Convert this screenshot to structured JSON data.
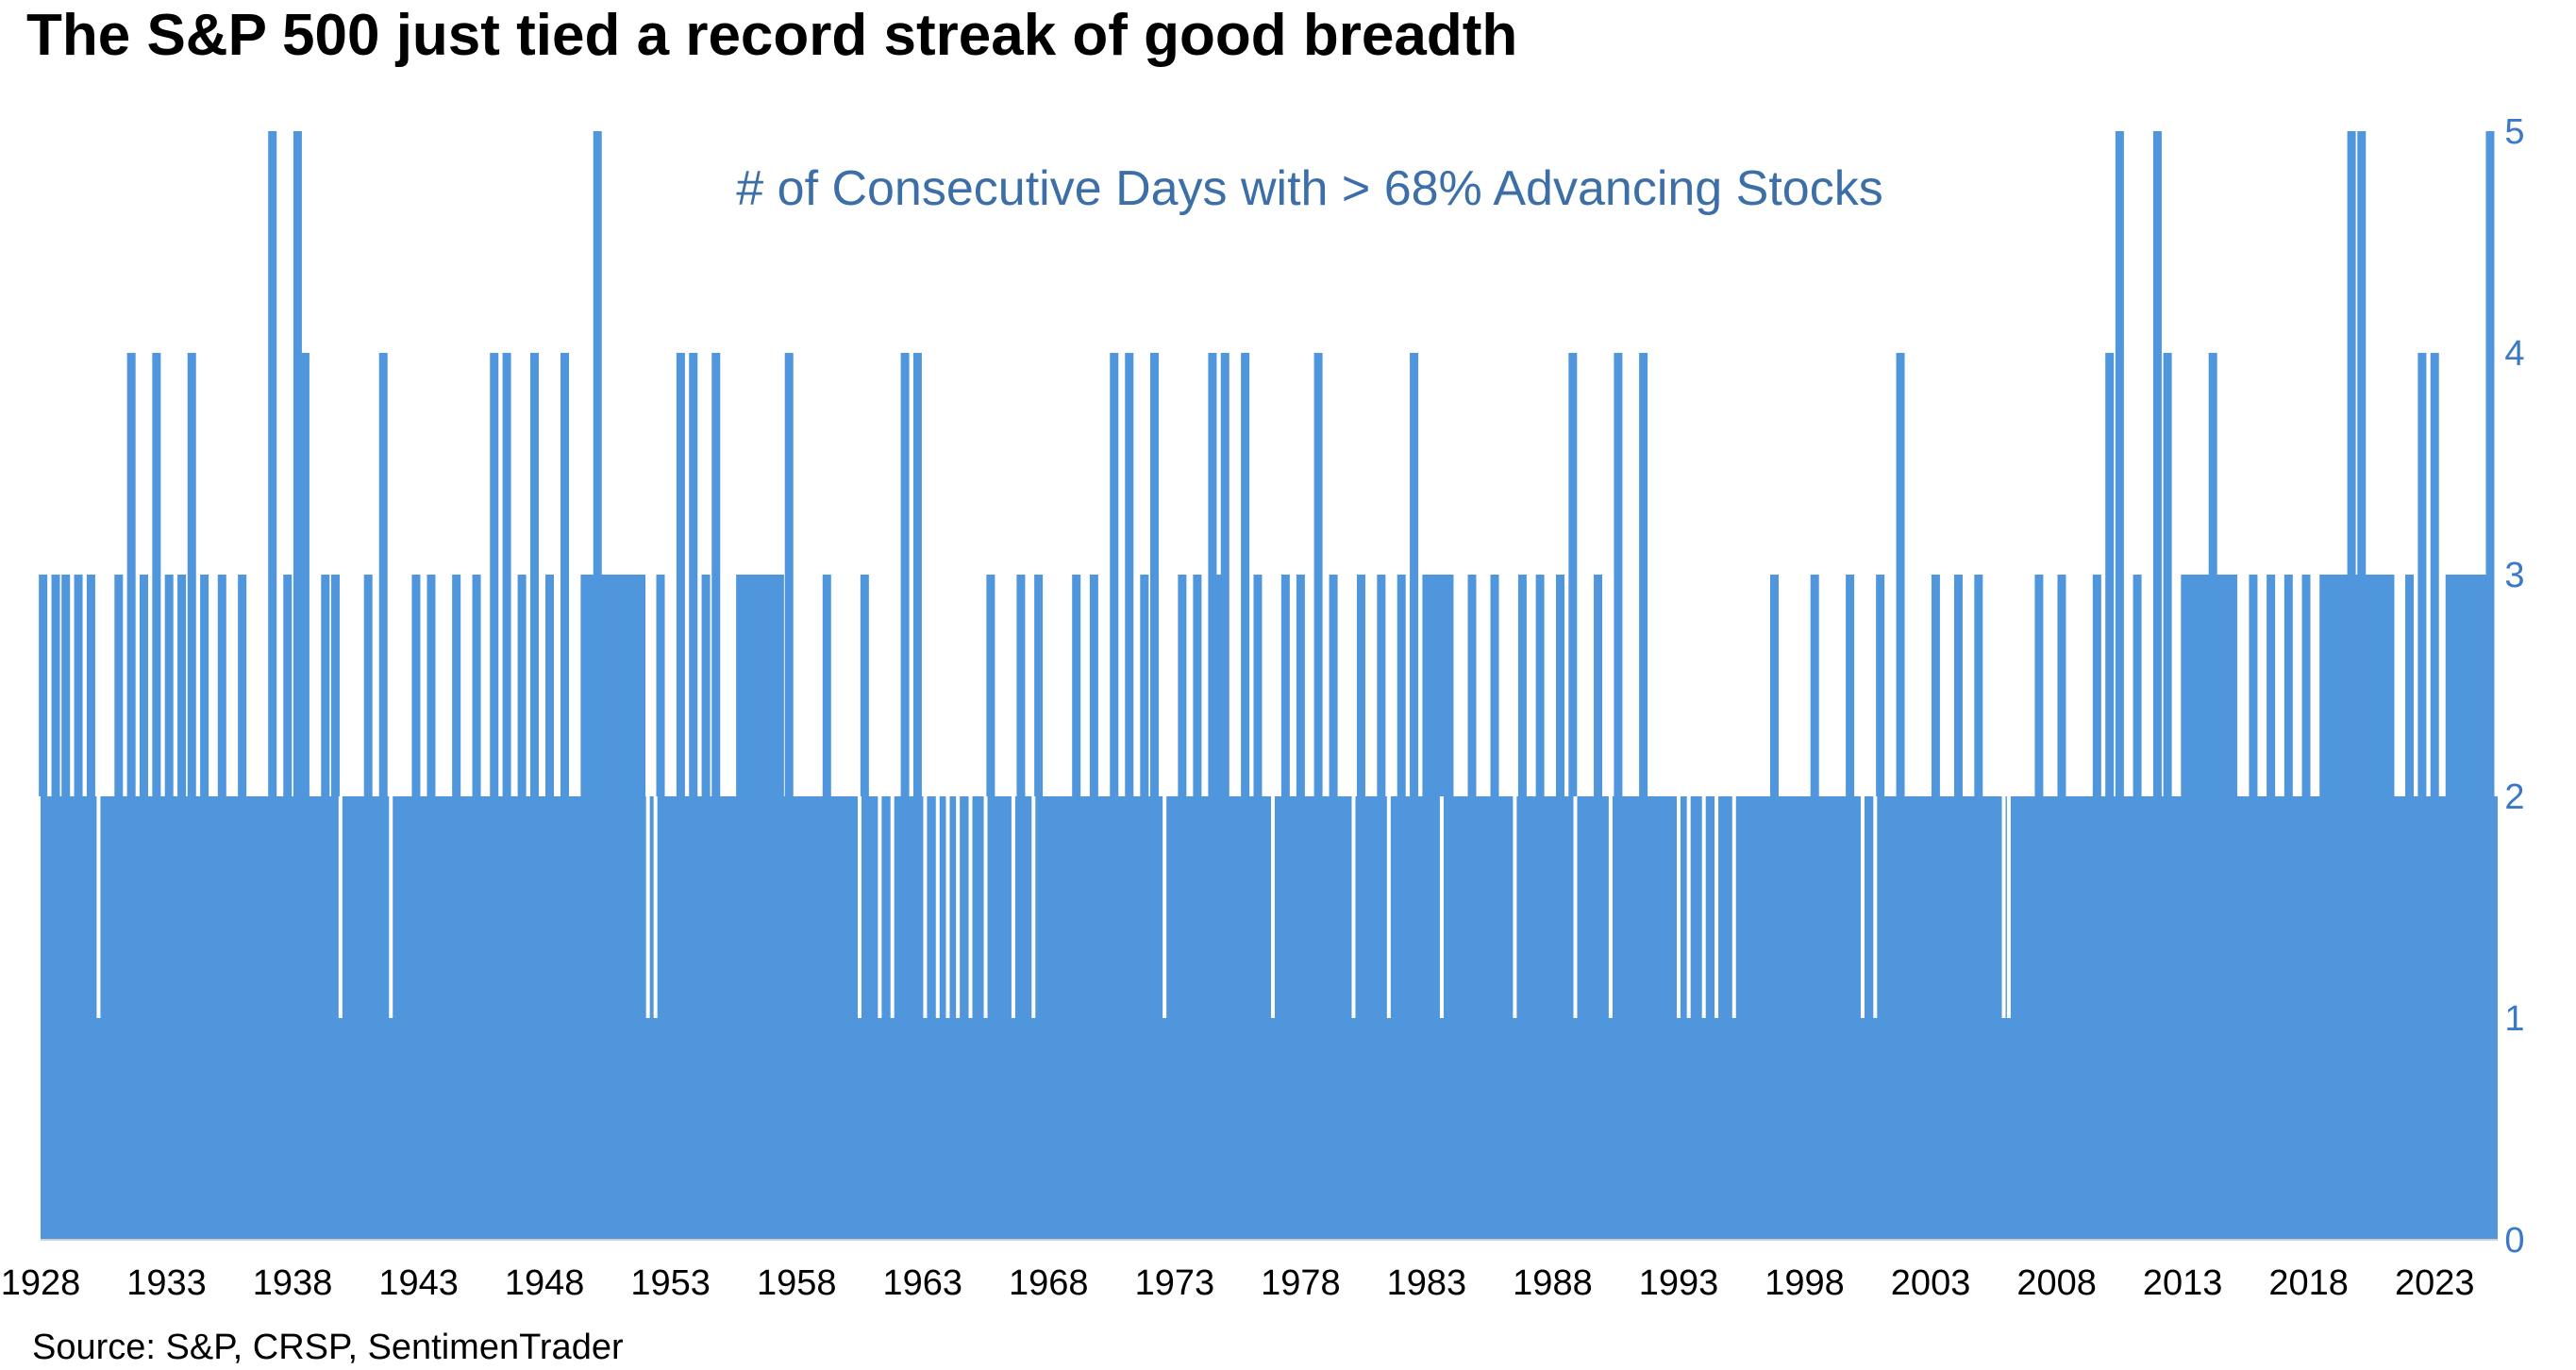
{
  "title": "The S&P 500 just tied a record streak of good breadth",
  "source": "Source: S&P, CRSP, SentimenTrader",
  "colors": {
    "bar": "#4f96dc",
    "axis_text_right": "#3a78c8",
    "inner_label": "#3c6ea8",
    "baseline": "#d0d0d0"
  },
  "chart_data": {
    "type": "bar",
    "title": "The S&P 500 just tied a record streak of good breadth",
    "series_label": "# of Consecutive Days with > 68% Advancing Stocks",
    "xlabel": "",
    "ylabel": "",
    "y_axis_position": "right",
    "xlim": [
      1928,
      2025.5
    ],
    "ylim": [
      0,
      5
    ],
    "y_ticks": [
      "0",
      "1",
      "2",
      "3",
      "4",
      "5"
    ],
    "x_ticks": [
      "1928",
      "1933",
      "1938",
      "1943",
      "1948",
      "1953",
      "1958",
      "1963",
      "1968",
      "1973",
      "1978",
      "1983",
      "1988",
      "1993",
      "1998",
      "2003",
      "2008",
      "2013",
      "2018",
      "2023"
    ],
    "base_level": 2,
    "dips": [
      {
        "year": 1930.3,
        "value": 1
      },
      {
        "year": 1939.9,
        "value": 1
      },
      {
        "year": 1941.9,
        "value": 1
      },
      {
        "year": 1952.1,
        "value": 1
      },
      {
        "year": 1952.4,
        "value": 1
      },
      {
        "year": 1960.5,
        "value": 1
      },
      {
        "year": 1961.3,
        "value": 1
      },
      {
        "year": 1961.8,
        "value": 1
      },
      {
        "year": 1963.1,
        "value": 1
      },
      {
        "year": 1963.6,
        "value": 1
      },
      {
        "year": 1964.0,
        "value": 1
      },
      {
        "year": 1964.4,
        "value": 1
      },
      {
        "year": 1964.9,
        "value": 1
      },
      {
        "year": 1965.5,
        "value": 1
      },
      {
        "year": 1966.6,
        "value": 1
      },
      {
        "year": 1967.4,
        "value": 1
      },
      {
        "year": 1972.6,
        "value": 1
      },
      {
        "year": 1976.9,
        "value": 1
      },
      {
        "year": 1980.1,
        "value": 1
      },
      {
        "year": 1981.5,
        "value": 1
      },
      {
        "year": 1983.6,
        "value": 1
      },
      {
        "year": 1986.5,
        "value": 1
      },
      {
        "year": 1988.9,
        "value": 1
      },
      {
        "year": 1990.3,
        "value": 1
      },
      {
        "year": 1993.0,
        "value": 1
      },
      {
        "year": 1993.4,
        "value": 1
      },
      {
        "year": 1994.0,
        "value": 1
      },
      {
        "year": 1994.5,
        "value": 1
      },
      {
        "year": 1995.2,
        "value": 1
      },
      {
        "year": 2000.3,
        "value": 1
      },
      {
        "year": 2000.8,
        "value": 1
      },
      {
        "year": 2005.9,
        "value": 1
      },
      {
        "year": 2006.1,
        "value": 1
      }
    ],
    "peaks": [
      {
        "year": 1928.1,
        "value": 3
      },
      {
        "year": 1928.6,
        "value": 3
      },
      {
        "year": 1929.0,
        "value": 3
      },
      {
        "year": 1929.5,
        "value": 3
      },
      {
        "year": 1930.0,
        "value": 3
      },
      {
        "year": 1931.1,
        "value": 3
      },
      {
        "year": 1931.6,
        "value": 4
      },
      {
        "year": 1932.1,
        "value": 3
      },
      {
        "year": 1932.6,
        "value": 4
      },
      {
        "year": 1933.1,
        "value": 3
      },
      {
        "year": 1933.6,
        "value": 3
      },
      {
        "year": 1934.0,
        "value": 4
      },
      {
        "year": 1934.5,
        "value": 3
      },
      {
        "year": 1935.2,
        "value": 3
      },
      {
        "year": 1936.0,
        "value": 3
      },
      {
        "year": 1937.2,
        "value": 5
      },
      {
        "year": 1937.8,
        "value": 3
      },
      {
        "year": 1938.2,
        "value": 5
      },
      {
        "year": 1938.5,
        "value": 4
      },
      {
        "year": 1939.3,
        "value": 3
      },
      {
        "year": 1939.7,
        "value": 3
      },
      {
        "year": 1941.0,
        "value": 3
      },
      {
        "year": 1941.6,
        "value": 4
      },
      {
        "year": 1942.9,
        "value": 3
      },
      {
        "year": 1943.5,
        "value": 3
      },
      {
        "year": 1944.5,
        "value": 3
      },
      {
        "year": 1945.3,
        "value": 3
      },
      {
        "year": 1946.0,
        "value": 4
      },
      {
        "year": 1946.5,
        "value": 4
      },
      {
        "year": 1947.1,
        "value": 3
      },
      {
        "year": 1947.6,
        "value": 4
      },
      {
        "year": 1948.2,
        "value": 3
      },
      {
        "year": 1948.8,
        "value": 4
      },
      {
        "year": 1949.6,
        "value": 3
      },
      {
        "year": 1950.1,
        "value": 5
      },
      {
        "year": 1950.6,
        "value": 3
      },
      {
        "year": 1951.3,
        "value": 3
      },
      {
        "year": 1952.6,
        "value": 3
      },
      {
        "year": 1953.4,
        "value": 4
      },
      {
        "year": 1953.9,
        "value": 4
      },
      {
        "year": 1954.4,
        "value": 3
      },
      {
        "year": 1954.8,
        "value": 4
      },
      {
        "year": 1955.8,
        "value": 3
      },
      {
        "year": 1956.8,
        "value": 3
      },
      {
        "year": 1957.7,
        "value": 4
      },
      {
        "year": 1959.2,
        "value": 3
      },
      {
        "year": 1960.7,
        "value": 3
      },
      {
        "year": 1962.3,
        "value": 4
      },
      {
        "year": 1962.8,
        "value": 4
      },
      {
        "year": 1965.7,
        "value": 3
      },
      {
        "year": 1966.9,
        "value": 3
      },
      {
        "year": 1967.6,
        "value": 3
      },
      {
        "year": 1969.1,
        "value": 3
      },
      {
        "year": 1969.8,
        "value": 3
      },
      {
        "year": 1970.6,
        "value": 4
      },
      {
        "year": 1971.2,
        "value": 4
      },
      {
        "year": 1971.8,
        "value": 3
      },
      {
        "year": 1972.2,
        "value": 4
      },
      {
        "year": 1973.3,
        "value": 3
      },
      {
        "year": 1973.9,
        "value": 3
      },
      {
        "year": 1974.5,
        "value": 4
      },
      {
        "year": 1975.0,
        "value": 4
      },
      {
        "year": 1975.8,
        "value": 4
      },
      {
        "year": 1976.3,
        "value": 3
      },
      {
        "year": 1977.4,
        "value": 3
      },
      {
        "year": 1978.0,
        "value": 3
      },
      {
        "year": 1978.7,
        "value": 4
      },
      {
        "year": 1979.3,
        "value": 3
      },
      {
        "year": 1980.4,
        "value": 3
      },
      {
        "year": 1981.2,
        "value": 3
      },
      {
        "year": 1982.0,
        "value": 3
      },
      {
        "year": 1982.5,
        "value": 4
      },
      {
        "year": 1983.0,
        "value": 3
      },
      {
        "year": 1983.9,
        "value": 3
      },
      {
        "year": 1984.8,
        "value": 3
      },
      {
        "year": 1985.7,
        "value": 3
      },
      {
        "year": 1986.8,
        "value": 3
      },
      {
        "year": 1987.5,
        "value": 3
      },
      {
        "year": 1988.3,
        "value": 3
      },
      {
        "year": 1988.8,
        "value": 4
      },
      {
        "year": 1989.8,
        "value": 3
      },
      {
        "year": 1990.6,
        "value": 4
      },
      {
        "year": 1991.6,
        "value": 4
      },
      {
        "year": 1996.8,
        "value": 3
      },
      {
        "year": 1998.4,
        "value": 3
      },
      {
        "year": 1999.8,
        "value": 3
      },
      {
        "year": 2001.0,
        "value": 3
      },
      {
        "year": 2001.8,
        "value": 4
      },
      {
        "year": 2003.2,
        "value": 3
      },
      {
        "year": 2004.1,
        "value": 3
      },
      {
        "year": 2004.9,
        "value": 3
      },
      {
        "year": 2007.3,
        "value": 3
      },
      {
        "year": 2008.2,
        "value": 3
      },
      {
        "year": 2009.6,
        "value": 3
      },
      {
        "year": 2010.1,
        "value": 4
      },
      {
        "year": 2010.5,
        "value": 5
      },
      {
        "year": 2011.2,
        "value": 3
      },
      {
        "year": 2012.0,
        "value": 5
      },
      {
        "year": 2012.4,
        "value": 4
      },
      {
        "year": 2013.1,
        "value": 3
      },
      {
        "year": 2013.6,
        "value": 3
      },
      {
        "year": 2014.2,
        "value": 4
      },
      {
        "year": 2015.0,
        "value": 3
      },
      {
        "year": 2015.8,
        "value": 3
      },
      {
        "year": 2016.5,
        "value": 3
      },
      {
        "year": 2017.2,
        "value": 3
      },
      {
        "year": 2017.9,
        "value": 3
      },
      {
        "year": 2018.6,
        "value": 3
      },
      {
        "year": 2019.3,
        "value": 3
      },
      {
        "year": 2019.7,
        "value": 5
      },
      {
        "year": 2020.1,
        "value": 5
      },
      {
        "year": 2020.6,
        "value": 3
      },
      {
        "year": 2021.2,
        "value": 3
      },
      {
        "year": 2022.0,
        "value": 3
      },
      {
        "year": 2022.5,
        "value": 4
      },
      {
        "year": 2023.0,
        "value": 4
      },
      {
        "year": 2023.6,
        "value": 3
      },
      {
        "year": 2024.2,
        "value": 3
      },
      {
        "year": 2024.7,
        "value": 3
      },
      {
        "year": 2025.2,
        "value": 5
      }
    ],
    "platforms_at_3": [
      {
        "start": 1949.6,
        "end": 1952.0
      },
      {
        "start": 1955.6,
        "end": 1957.5
      },
      {
        "start": 1974.4,
        "end": 1975.1
      },
      {
        "start": 1983.0,
        "end": 1983.9
      },
      {
        "start": 2013.1,
        "end": 2015.1
      },
      {
        "start": 2018.5,
        "end": 2021.4
      },
      {
        "start": 2023.6,
        "end": 2025.2
      }
    ]
  }
}
